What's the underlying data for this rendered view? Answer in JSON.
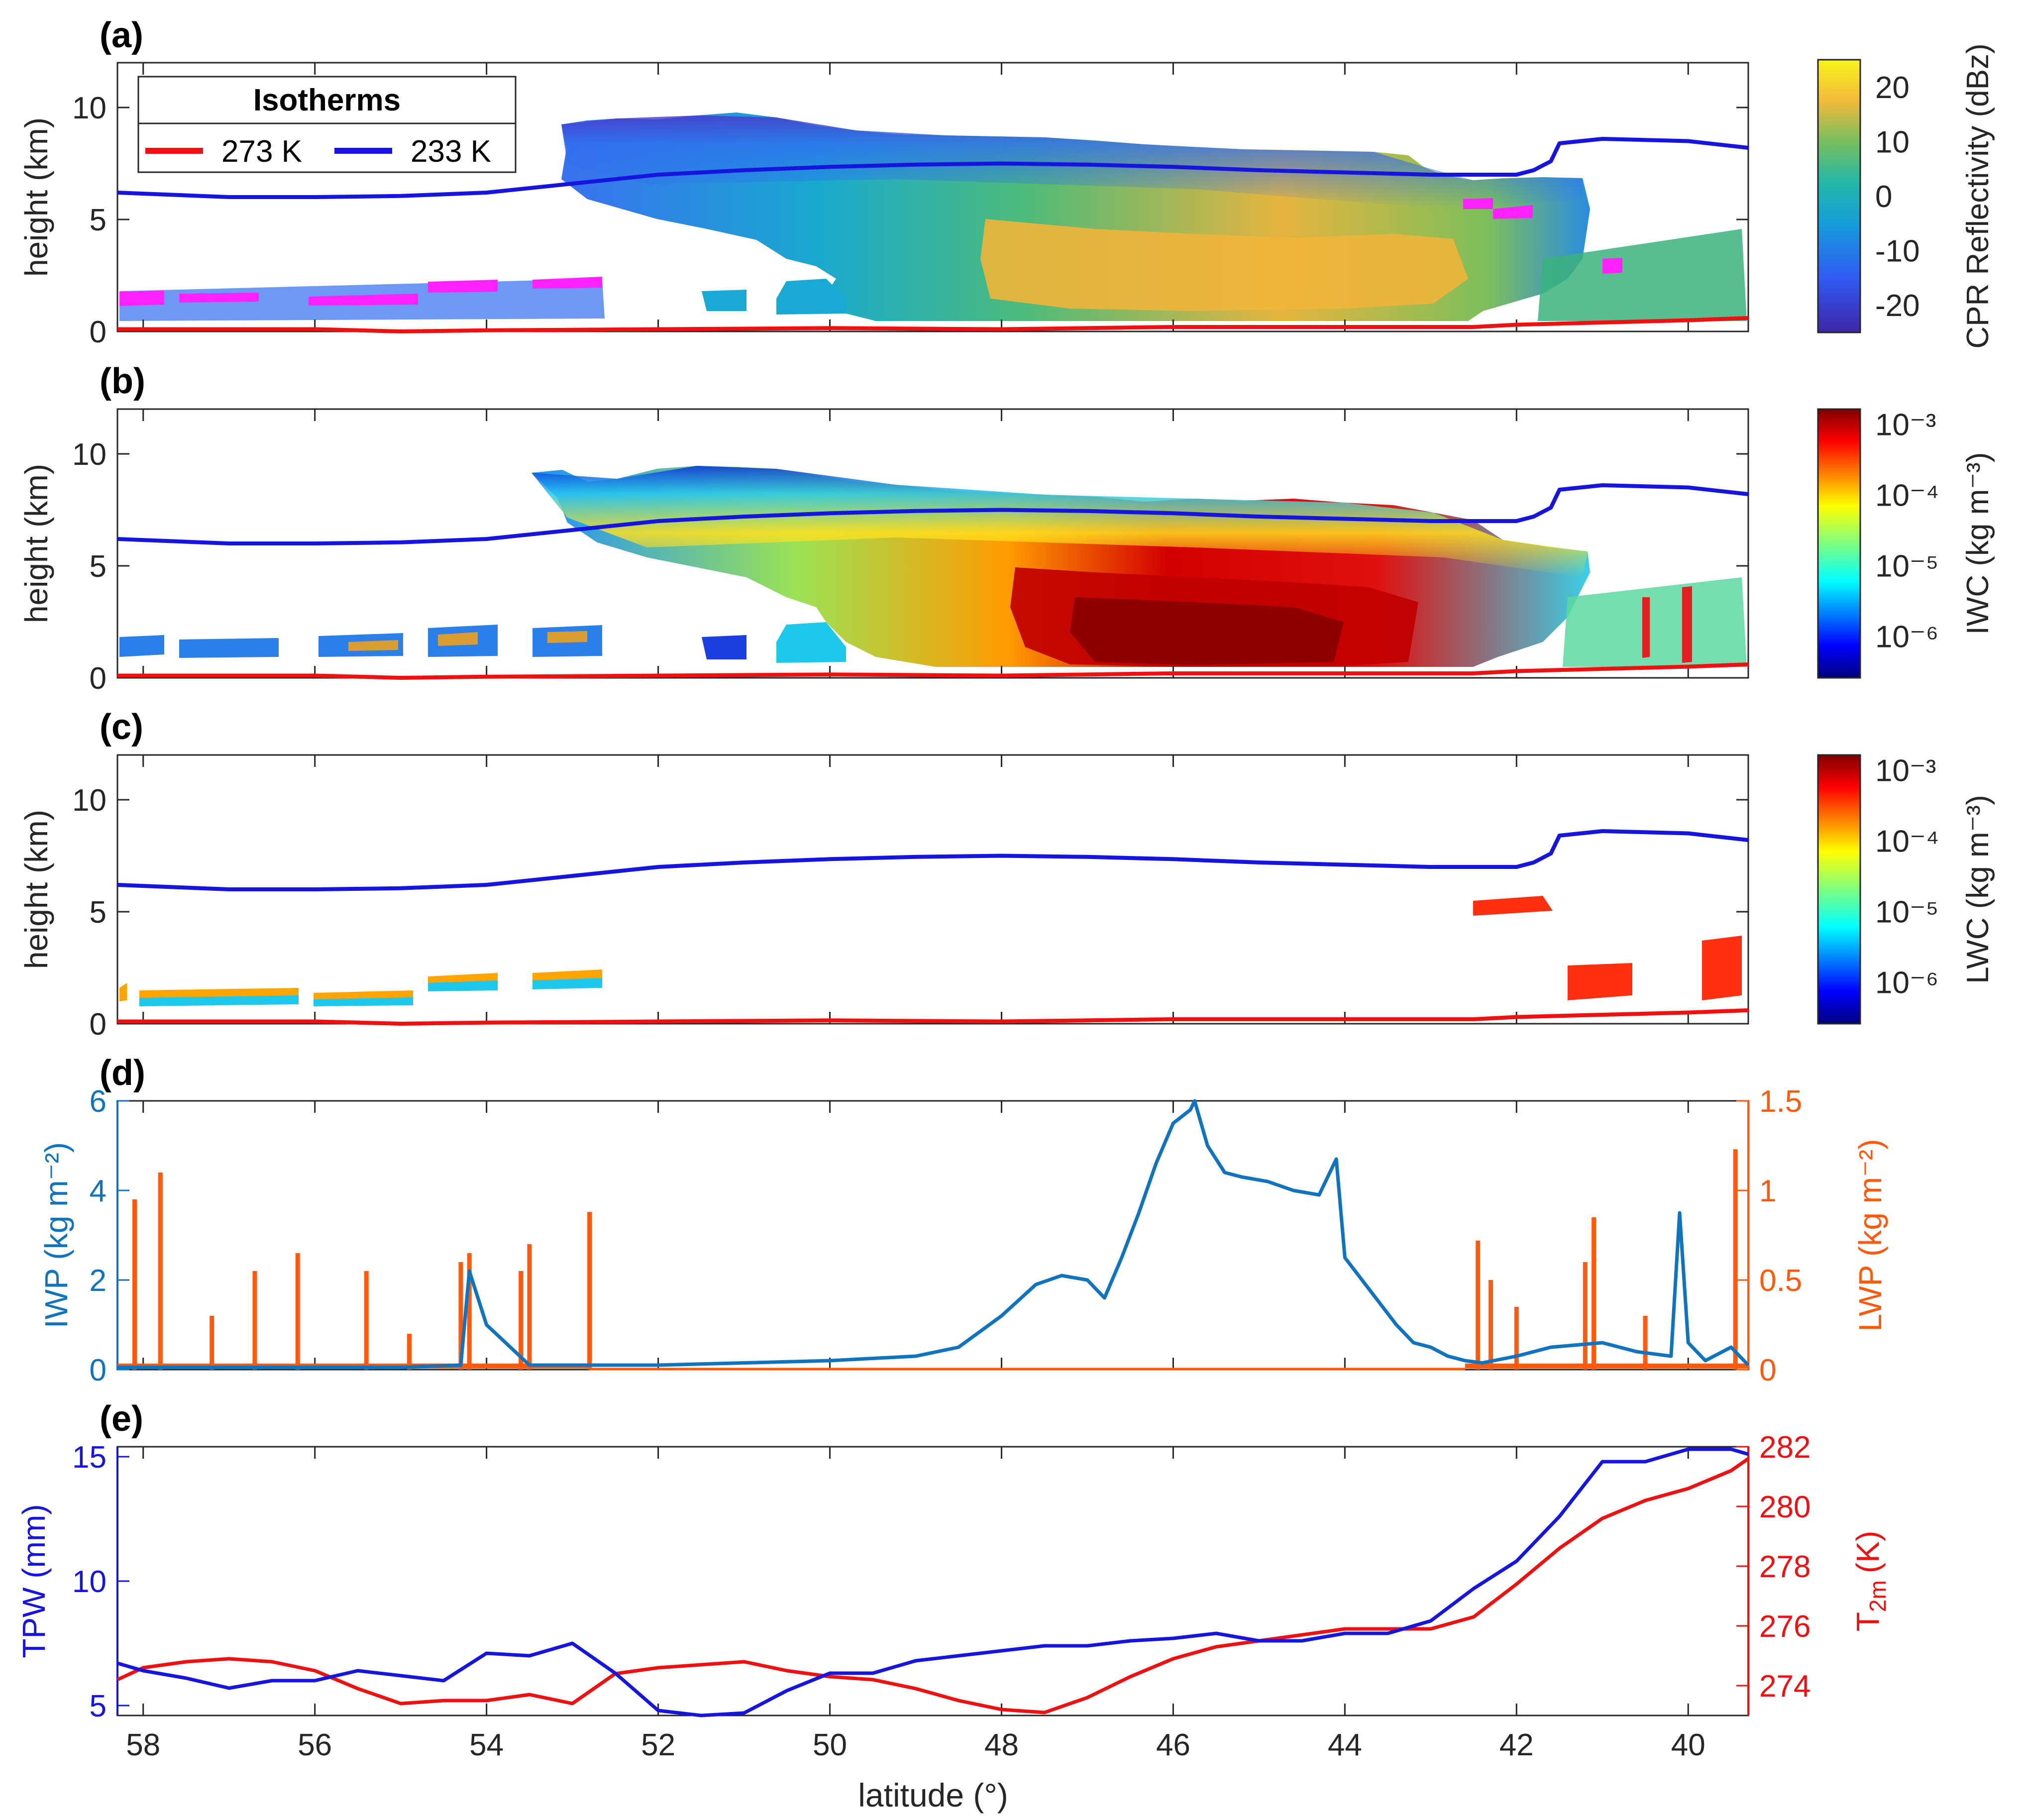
{
  "figure_label": "Five-panel CloudSat/CALIPSO cross-section figure",
  "colors": {
    "red": "#ee1111",
    "blue": "#1515dd",
    "iwp": "#0f74bd",
    "lwp": "#ff5a0d",
    "magenta": "#ff22ff",
    "axis": "#262626"
  },
  "xaxis": {
    "label": "latitude (°)",
    "lim": [
      58.3,
      39.3
    ],
    "ticks": [
      58,
      56,
      54,
      52,
      50,
      48,
      46,
      44,
      42,
      40
    ],
    "tick_labels": [
      "58",
      "56",
      "54",
      "52",
      "50",
      "48",
      "46",
      "44",
      "42",
      "40"
    ]
  },
  "legend": {
    "title": "Isotherms",
    "entries": [
      {
        "label": "273 K",
        "color": "#ee1111"
      },
      {
        "label": "233 K",
        "color": "#1515dd"
      }
    ]
  },
  "chart_data": [
    {
      "type": "heatmap",
      "panel": "(a)",
      "title": "(a)",
      "ylabel": "height (km)",
      "ylim": [
        0,
        12
      ],
      "yticks": [
        "0",
        "5",
        "10"
      ],
      "colorbar": {
        "label": "CPR Reflectivity (dBz)",
        "range": [
          -25,
          25
        ],
        "ticks": [
          "20",
          "10",
          "0",
          "-10",
          "-20"
        ],
        "tick_values": [
          20,
          10,
          0,
          -10,
          -20
        ]
      },
      "isotherm_233K_km": {
        "lat": [
          58.3,
          57,
          56,
          55,
          54,
          53,
          52,
          51,
          50,
          49,
          48,
          47,
          46,
          45,
          44,
          43,
          42,
          41.8,
          41.6,
          41.5,
          41,
          40,
          39.3
        ],
        "height": [
          6.2,
          6.0,
          6.0,
          6.05,
          6.2,
          6.6,
          7.0,
          7.2,
          7.35,
          7.45,
          7.5,
          7.45,
          7.35,
          7.2,
          7.1,
          7.0,
          7.0,
          7.2,
          7.6,
          8.4,
          8.6,
          8.5,
          8.2
        ]
      },
      "isotherm_273K_km": {
        "lat": [
          58.3,
          56,
          55,
          54,
          52,
          50,
          48,
          46,
          44,
          42.5,
          42,
          41,
          40,
          39.3
        ],
        "height": [
          0.1,
          0.1,
          0.0,
          0.05,
          0.1,
          0.15,
          0.1,
          0.2,
          0.2,
          0.2,
          0.3,
          0.4,
          0.5,
          0.6
        ]
      }
    },
    {
      "type": "heatmap",
      "panel": "(b)",
      "title": "(b)",
      "ylabel": "height (km)",
      "ylim": [
        0,
        12
      ],
      "yticks": [
        "0",
        "5",
        "10"
      ],
      "colorbar": {
        "label": "IWC (kg m⁻³)",
        "range_log10": [
          -6.6,
          -2.8
        ],
        "ticks": [
          "10⁻³",
          "10⁻⁴",
          "10⁻⁵",
          "10⁻⁶"
        ],
        "tick_exponents": [
          -3,
          -4,
          -5,
          -6
        ]
      }
    },
    {
      "type": "heatmap",
      "panel": "(c)",
      "title": "(c)",
      "ylabel": "height (km)",
      "ylim": [
        0,
        12
      ],
      "yticks": [
        "0",
        "5",
        "10"
      ],
      "colorbar": {
        "label": "LWC (kg m⁻³)",
        "range_log10": [
          -6.6,
          -2.8
        ],
        "ticks": [
          "10⁻³",
          "10⁻⁴",
          "10⁻⁵",
          "10⁻⁶"
        ],
        "tick_exponents": [
          -3,
          -4,
          -5,
          -6
        ]
      }
    },
    {
      "type": "line",
      "panel": "(d)",
      "title": "(d)",
      "ylabel_left": "IWP (kg m⁻²)",
      "ylabel_right": "LWP (kg m⁻²)",
      "ylim_left": [
        0,
        6
      ],
      "ylim_right": [
        0,
        1.5
      ],
      "yticks_left": [
        "0",
        "2",
        "4",
        "6"
      ],
      "yticks_right": [
        "0",
        "0.5",
        "1",
        "1.5"
      ],
      "series": [
        {
          "name": "IWP",
          "axis": "left",
          "x": [
            58.3,
            57,
            56,
            55,
            54.3,
            54.2,
            54.0,
            53.5,
            53,
            52.5,
            52,
            51,
            50,
            49,
            48.5,
            48,
            47.6,
            47.3,
            47.0,
            46.8,
            46.6,
            46.4,
            46.2,
            46.0,
            45.8,
            45.75,
            45.6,
            45.4,
            45.2,
            44.9,
            44.6,
            44.3,
            44.1,
            44.0,
            43.8,
            43.6,
            43.4,
            43.2,
            43.0,
            42.8,
            42.6,
            42.4,
            42.0,
            41.6,
            41.0,
            40.6,
            40.2,
            40.1,
            40.0,
            39.8,
            39.5,
            39.3
          ],
          "values": [
            0.05,
            0.05,
            0.05,
            0.05,
            0.1,
            2.2,
            1.0,
            0.1,
            0.1,
            0.1,
            0.1,
            0.15,
            0.2,
            0.3,
            0.5,
            1.2,
            1.9,
            2.1,
            2.0,
            1.6,
            2.5,
            3.5,
            4.6,
            5.5,
            5.8,
            6.0,
            5.0,
            4.4,
            4.3,
            4.2,
            4.0,
            3.9,
            4.7,
            2.5,
            2.0,
            1.5,
            1.0,
            0.6,
            0.5,
            0.3,
            0.2,
            0.15,
            0.3,
            0.5,
            0.6,
            0.4,
            0.3,
            3.5,
            0.6,
            0.2,
            0.5,
            0.1
          ]
        },
        {
          "name": "LWP",
          "axis": "right",
          "x": [
            58.1,
            57.8,
            57.2,
            56.7,
            56.2,
            55.4,
            54.9,
            54.3,
            54.2,
            53.6,
            53.5,
            52.8,
            42.45,
            42.3,
            42.0,
            41.2,
            41.1,
            40.5,
            39.45
          ],
          "values": [
            0.95,
            1.1,
            0.3,
            0.55,
            0.65,
            0.55,
            0.2,
            0.6,
            0.65,
            0.55,
            0.7,
            0.88,
            0.72,
            0.5,
            0.35,
            0.6,
            0.85,
            0.3,
            1.23
          ]
        }
      ]
    },
    {
      "type": "line",
      "panel": "(e)",
      "title": "(e)",
      "ylabel_left": "TPW (mm)",
      "ylabel_right": "T2m (K)",
      "ylabel_right_main": "T",
      "ylabel_right_sub": "2m",
      "ylabel_right_unit": "(K)",
      "ylim_left": [
        4.6,
        15.4
      ],
      "ylim_right": [
        273.0,
        282.0
      ],
      "yticks_left": [
        "5",
        "10",
        "15"
      ],
      "yticks_right": [
        "274",
        "276",
        "278",
        "280",
        "282"
      ],
      "series": [
        {
          "name": "TPW",
          "axis": "left",
          "x": [
            58.3,
            58,
            57.5,
            57,
            56.5,
            56,
            55.5,
            55,
            54.5,
            54,
            53.5,
            53,
            52.5,
            52,
            51.5,
            51,
            50.5,
            50,
            49.5,
            49,
            48.5,
            48,
            47.5,
            47,
            46.5,
            46,
            45.5,
            45,
            44.5,
            44,
            43.5,
            43,
            42.5,
            42,
            41.5,
            41,
            40.5,
            40,
            39.5,
            39.3
          ],
          "values": [
            6.7,
            6.4,
            6.1,
            5.7,
            6.0,
            6.0,
            6.4,
            6.2,
            6.0,
            7.1,
            7.0,
            7.5,
            6.3,
            4.8,
            4.6,
            4.7,
            5.6,
            6.3,
            6.3,
            6.8,
            7.0,
            7.2,
            7.4,
            7.4,
            7.6,
            7.7,
            7.9,
            7.6,
            7.6,
            7.9,
            7.9,
            8.4,
            9.7,
            10.8,
            12.6,
            14.8,
            14.8,
            15.3,
            15.3,
            15.1
          ]
        },
        {
          "name": "T2m",
          "axis": "right",
          "x": [
            58.3,
            58,
            57.5,
            57,
            56.5,
            56,
            55.5,
            55,
            54.5,
            54,
            53.5,
            53,
            52.5,
            52,
            51.5,
            51,
            50.5,
            50,
            49.5,
            49,
            48.5,
            48,
            47.5,
            47,
            46.5,
            46,
            45.5,
            45,
            44.5,
            44,
            43.5,
            43,
            42.5,
            42,
            41.5,
            41,
            40.5,
            40,
            39.5,
            39.3
          ],
          "values": [
            274.2,
            274.6,
            274.8,
            274.9,
            274.8,
            274.5,
            273.9,
            273.4,
            273.5,
            273.5,
            273.7,
            273.4,
            274.4,
            274.6,
            274.7,
            274.8,
            274.5,
            274.3,
            274.2,
            273.9,
            273.5,
            273.2,
            273.1,
            273.6,
            274.3,
            274.9,
            275.3,
            275.5,
            275.7,
            275.9,
            275.9,
            275.9,
            276.3,
            277.4,
            278.6,
            279.6,
            280.2,
            280.6,
            281.2,
            281.6
          ]
        }
      ]
    }
  ]
}
